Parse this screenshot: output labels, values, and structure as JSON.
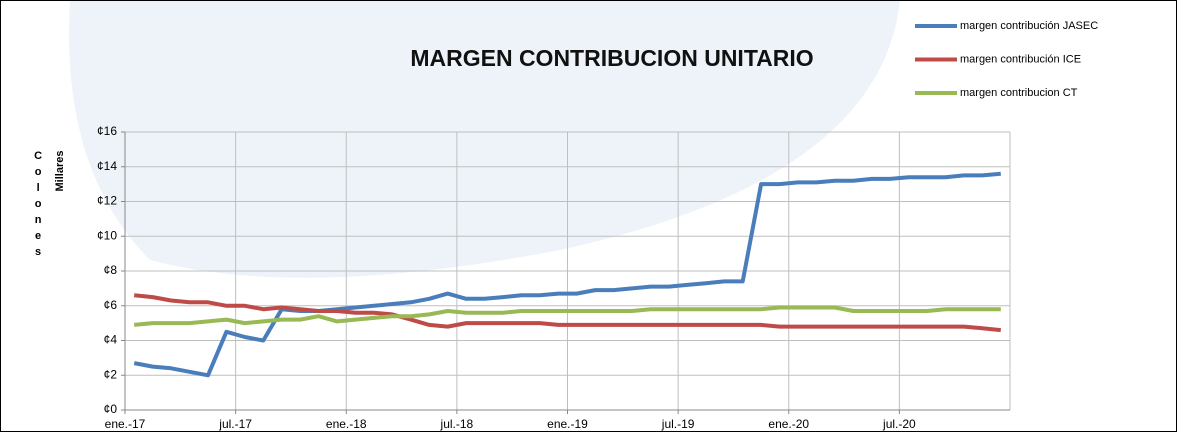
{
  "chart_data": {
    "type": "line",
    "title": "MARGEN CONTRIBUCION UNITARIO",
    "y_label": "Colones",
    "y_unit": "Millares",
    "categories": [
      "ene.-17",
      null,
      null,
      null,
      null,
      null,
      "jul.-17",
      null,
      null,
      null,
      null,
      null,
      "ene.-18",
      null,
      null,
      null,
      null,
      null,
      "jul.-18",
      null,
      null,
      null,
      null,
      null,
      "ene.-19",
      null,
      null,
      null,
      null,
      null,
      "jul.-19",
      null,
      null,
      null,
      null,
      null,
      "ene.-20",
      null,
      null,
      null,
      null,
      null,
      "jul.-20",
      null,
      null,
      null,
      null,
      null
    ],
    "series": [
      {
        "name": "margen contribución JASEC",
        "color": "#4a7ebb",
        "values": [
          2.7,
          2.5,
          2.4,
          2.2,
          2.0,
          4.5,
          4.2,
          4.0,
          5.8,
          5.7,
          5.7,
          5.8,
          5.9,
          6.0,
          6.1,
          6.2,
          6.4,
          6.7,
          6.4,
          6.4,
          6.5,
          6.6,
          6.6,
          6.7,
          6.7,
          6.9,
          6.9,
          7.0,
          7.1,
          7.1,
          7.2,
          7.3,
          7.4,
          7.4,
          13.0,
          13.0,
          13.1,
          13.1,
          13.2,
          13.2,
          13.3,
          13.3,
          13.4,
          13.4,
          13.4,
          13.5,
          13.5,
          13.6
        ]
      },
      {
        "name": "margen contribución ICE",
        "color": "#be4b48",
        "values": [
          6.6,
          6.5,
          6.3,
          6.2,
          6.2,
          6.0,
          6.0,
          5.8,
          5.9,
          5.8,
          5.7,
          5.7,
          5.6,
          5.6,
          5.5,
          5.2,
          4.9,
          4.8,
          5.0,
          5.0,
          5.0,
          5.0,
          5.0,
          4.9,
          4.9,
          4.9,
          4.9,
          4.9,
          4.9,
          4.9,
          4.9,
          4.9,
          4.9,
          4.9,
          4.9,
          4.8,
          4.8,
          4.8,
          4.8,
          4.8,
          4.8,
          4.8,
          4.8,
          4.8,
          4.8,
          4.8,
          4.7,
          4.6
        ]
      },
      {
        "name": "margen contribucion CT",
        "color": "#98b954",
        "values": [
          4.9,
          5.0,
          5.0,
          5.0,
          5.1,
          5.2,
          5.0,
          5.1,
          5.2,
          5.2,
          5.4,
          5.1,
          5.2,
          5.3,
          5.4,
          5.4,
          5.5,
          5.7,
          5.6,
          5.6,
          5.6,
          5.7,
          5.7,
          5.7,
          5.7,
          5.7,
          5.7,
          5.7,
          5.8,
          5.8,
          5.8,
          5.8,
          5.8,
          5.8,
          5.8,
          5.9,
          5.9,
          5.9,
          5.9,
          5.7,
          5.7,
          5.7,
          5.7,
          5.7,
          5.8,
          5.8,
          5.8,
          5.8
        ]
      }
    ],
    "ylim": [
      0,
      16
    ],
    "yticks": [
      {
        "value": 0,
        "label": "¢0"
      },
      {
        "value": 2,
        "label": "¢2"
      },
      {
        "value": 4,
        "label": "¢4"
      },
      {
        "value": 6,
        "label": "¢6"
      },
      {
        "value": 8,
        "label": "¢8"
      },
      {
        "value": 10,
        "label": "¢10"
      },
      {
        "value": 12,
        "label": "¢12"
      },
      {
        "value": 14,
        "label": "¢14"
      },
      {
        "value": 16,
        "label": "¢16"
      }
    ],
    "grid": true,
    "legend": "top-right"
  }
}
